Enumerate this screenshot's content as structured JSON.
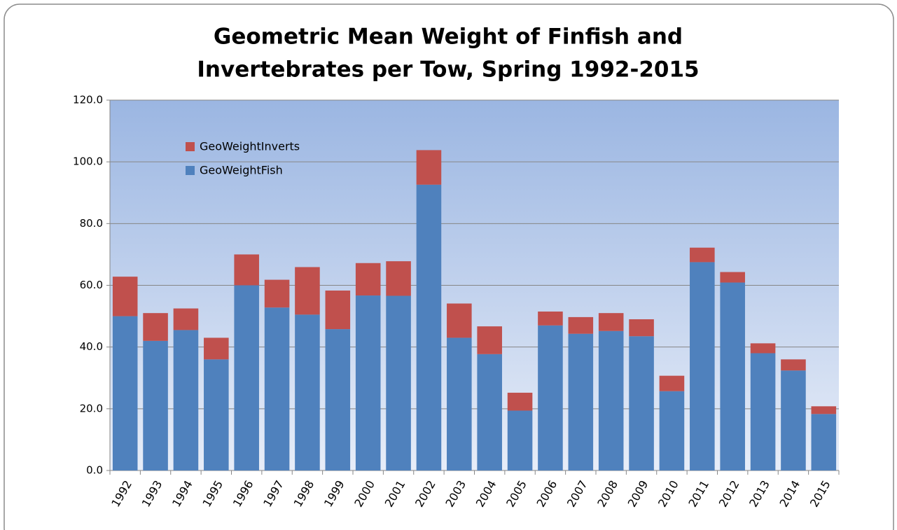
{
  "chart_data": {
    "type": "stacked_bar",
    "title": [
      "Geometric Mean Weight of Finfish and",
      "Invertebrates per Tow, Spring 1992-2015"
    ],
    "categories": [
      "1992",
      "1993",
      "1994",
      "1995",
      "1996",
      "1997",
      "1998",
      "1999",
      "2000",
      "2001",
      "2002",
      "2003",
      "2004",
      "2005",
      "2006",
      "2007",
      "2008",
      "2009",
      "2010",
      "2011",
      "2012",
      "2013",
      "2014",
      "2015"
    ],
    "series": [
      {
        "name": "GeoWeightFish",
        "color": "#4f81bd",
        "values": [
          50,
          42,
          45.5,
          36,
          60,
          52.8,
          50.5,
          45.8,
          56.7,
          56.6,
          92.6,
          43,
          37.7,
          19.4,
          47,
          44.3,
          45.2,
          43.5,
          25.7,
          67.5,
          60.9,
          38,
          32.4,
          18.3
        ]
      },
      {
        "name": "GeoWeightInverts",
        "color": "#c0504d",
        "values": [
          12.8,
          9,
          7,
          7,
          10,
          9,
          15.4,
          12.5,
          10.5,
          11.2,
          11.2,
          11.1,
          9,
          5.8,
          4.5,
          5.4,
          5.8,
          5.5,
          5,
          4.7,
          3.4,
          3.2,
          3.6,
          2.5
        ]
      }
    ],
    "ylim": [
      0,
      120
    ],
    "yticks": [
      {
        "value": 0,
        "label": "0.0"
      },
      {
        "value": 20,
        "label": "20.0"
      },
      {
        "value": 40,
        "label": "40.0"
      },
      {
        "value": 60,
        "label": "60.0"
      },
      {
        "value": 80,
        "label": "80.0"
      },
      {
        "value": 100,
        "label": "100.0"
      },
      {
        "value": 120,
        "label": "120.0"
      }
    ],
    "grid": true,
    "legend": "upper left"
  }
}
